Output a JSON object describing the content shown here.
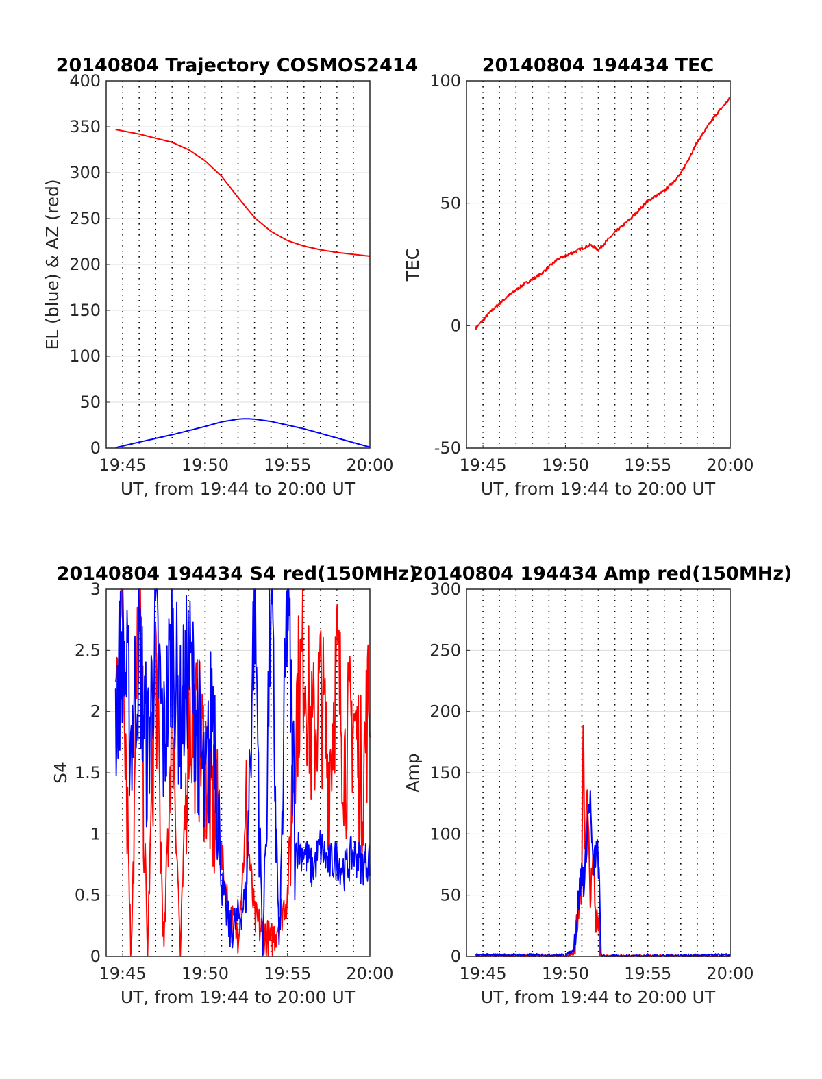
{
  "colors": {
    "el": "#0000ff",
    "az": "#ff0000",
    "red_channel": "#ff0000",
    "blue_channel": "#0000ff",
    "hgrid": "#dcdcdc",
    "vgrid": "#000000"
  },
  "chart_data": [
    {
      "id": "trajectory",
      "type": "line",
      "title": "20140804 Trajectory COSMOS2414",
      "xlabel": "UT, from 19:44 to 20:00 UT",
      "ylabel": "EL (blue) & AZ (red)",
      "xlim": [
        19.7333,
        20.0
      ],
      "ylim": [
        0,
        400
      ],
      "xticks": [
        "19:45",
        "19:50",
        "19:55",
        "20:00"
      ],
      "yticks": [
        "0",
        "50",
        "100",
        "150",
        "200",
        "250",
        "300",
        "350",
        "400"
      ],
      "grid": "vertical dotted every minute, horizontal light",
      "series": [
        {
          "key": "el",
          "x": [
            "19:44:34",
            "19:46",
            "19:48",
            "19:50",
            "19:51",
            "19:52",
            "19:52:30",
            "19:53",
            "19:54",
            "19:56",
            "19:58",
            "20:00"
          ],
          "values": [
            0.5,
            6.5,
            14.5,
            23.5,
            28.5,
            31.5,
            32,
            31.5,
            29,
            21,
            11,
            1
          ]
        },
        {
          "key": "az",
          "x": [
            "19:44:34",
            "19:46",
            "19:48",
            "19:49",
            "19:50",
            "19:51",
            "19:52",
            "19:53",
            "19:54",
            "19:55",
            "19:56",
            "19:57",
            "19:58",
            "19:59",
            "20:00"
          ],
          "values": [
            347,
            342,
            333,
            325,
            313,
            296,
            273,
            251,
            236,
            226,
            220,
            216,
            213,
            211,
            209
          ]
        }
      ]
    },
    {
      "id": "tec",
      "type": "line",
      "title": "20140804 194434 TEC",
      "xlabel": "UT, from 19:44 to 20:00 UT",
      "ylabel": "TEC",
      "xlim": [
        19.7333,
        20.0
      ],
      "ylim": [
        -50,
        100
      ],
      "xticks": [
        "19:45",
        "19:50",
        "19:55",
        "20:00"
      ],
      "yticks": [
        "-50",
        "0",
        "50",
        "100"
      ],
      "series": [
        {
          "key": "red_channel",
          "x": [
            "19:44:34",
            "19:45:30",
            "19:46:30",
            "19:47:30",
            "19:48:30",
            "19:49:30",
            "19:50:30",
            "19:51:30",
            "19:52:00",
            "19:53:00",
            "19:54:00",
            "19:55:00",
            "19:56:00",
            "19:57:00",
            "19:58:00",
            "19:59:00",
            "20:00:00"
          ],
          "values": [
            -1,
            6,
            12,
            17,
            21,
            27,
            30,
            33,
            31,
            38,
            44,
            51,
            55,
            62,
            75,
            85,
            93
          ]
        }
      ]
    },
    {
      "id": "s4",
      "type": "line",
      "title": "20140804 194434 S4 red(150MHz)",
      "xlabel": "UT, from 19:44 to 20:00 UT",
      "ylabel": "S4",
      "xlim": [
        19.7333,
        20.0
      ],
      "ylim": [
        0,
        3
      ],
      "xticks": [
        "19:45",
        "19:50",
        "19:55",
        "20:00"
      ],
      "yticks": [
        "0",
        "0.5",
        "1",
        "1.5",
        "2",
        "2.5",
        "3"
      ],
      "series": [
        {
          "key": "red_channel",
          "x": [
            "19:44:34",
            "19:45:00",
            "19:45:30",
            "19:46:00",
            "19:46:30",
            "19:47:00",
            "19:47:30",
            "19:48:00",
            "19:48:30",
            "19:49:00",
            "19:49:30",
            "19:50:00",
            "19:50:30",
            "19:51:00",
            "19:51:30",
            "19:52:00",
            "19:52:30",
            "19:53:00",
            "19:54:00",
            "19:55:00",
            "19:55:30",
            "19:56:00",
            "19:56:30",
            "19:57:00",
            "19:57:30",
            "19:58:00",
            "19:58:30",
            "19:59:00",
            "19:59:30",
            "20:00:00"
          ],
          "values": [
            2.1,
            3.0,
            0.0,
            3.0,
            0.0,
            2.5,
            0.0,
            2.2,
            0.0,
            2.0,
            1.8,
            1.6,
            1.2,
            0.8,
            0.3,
            0.2,
            1.1,
            0.3,
            0.1,
            0.5,
            2.0,
            2.5,
            1.7,
            2.2,
            1.5,
            2.4,
            1.6,
            2.0,
            1.4,
            2.2
          ]
        },
        {
          "key": "blue_channel",
          "x": [
            "19:44:34",
            "19:45:00",
            "19:45:30",
            "19:46:00",
            "19:46:30",
            "19:47:00",
            "19:47:30",
            "19:48:00",
            "19:48:30",
            "19:49:00",
            "19:49:30",
            "19:50:00",
            "19:50:30",
            "19:51:00",
            "19:51:30",
            "19:52:00",
            "19:52:30",
            "19:53:00",
            "19:53:30",
            "19:54:00",
            "19:54:30",
            "19:55:00",
            "19:55:30",
            "19:56:00",
            "19:56:30",
            "19:57:00",
            "19:57:30",
            "19:58:00",
            "19:58:30",
            "19:59:00",
            "19:59:30",
            "20:00:00"
          ],
          "values": [
            2.0,
            2.6,
            1.8,
            2.5,
            1.6,
            2.7,
            1.7,
            2.6,
            1.9,
            2.4,
            2.0,
            1.2,
            2.2,
            0.6,
            0.2,
            0.3,
            0.5,
            3.0,
            0.0,
            3.0,
            0.0,
            3.0,
            0.9,
            0.85,
            0.7,
            0.9,
            0.75,
            0.8,
            0.7,
            0.85,
            0.75,
            0.8
          ]
        }
      ]
    },
    {
      "id": "amp",
      "type": "line",
      "title": "20140804 194434 Amp red(150MHz)",
      "xlabel": "UT, from 19:44 to 20:00 UT",
      "ylabel": "Amp",
      "xlim": [
        19.7333,
        20.0
      ],
      "ylim": [
        0,
        300
      ],
      "xticks": [
        "19:45",
        "19:50",
        "19:55",
        "20:00"
      ],
      "yticks": [
        "0",
        "50",
        "100",
        "150",
        "200",
        "250",
        "300"
      ],
      "series": [
        {
          "key": "red_channel",
          "x": [
            "19:44:34",
            "19:50:00",
            "19:50:30",
            "19:50:45",
            "19:51:00",
            "19:51:05",
            "19:51:10",
            "19:51:20",
            "19:51:30",
            "19:51:40",
            "19:51:50",
            "19:52:00",
            "19:52:10",
            "20:00:00"
          ],
          "values": [
            0,
            0,
            2,
            30,
            60,
            210,
            80,
            145,
            40,
            90,
            30,
            25,
            0,
            0
          ]
        },
        {
          "key": "blue_channel",
          "x": [
            "19:44:34",
            "19:50:00",
            "19:50:30",
            "19:50:45",
            "19:51:00",
            "19:51:10",
            "19:51:20",
            "19:51:30",
            "19:51:40",
            "19:51:50",
            "19:52:00",
            "19:52:10",
            "20:00:00"
          ],
          "values": [
            1,
            1,
            5,
            40,
            70,
            60,
            110,
            130,
            70,
            85,
            80,
            0,
            1
          ]
        }
      ]
    }
  ]
}
